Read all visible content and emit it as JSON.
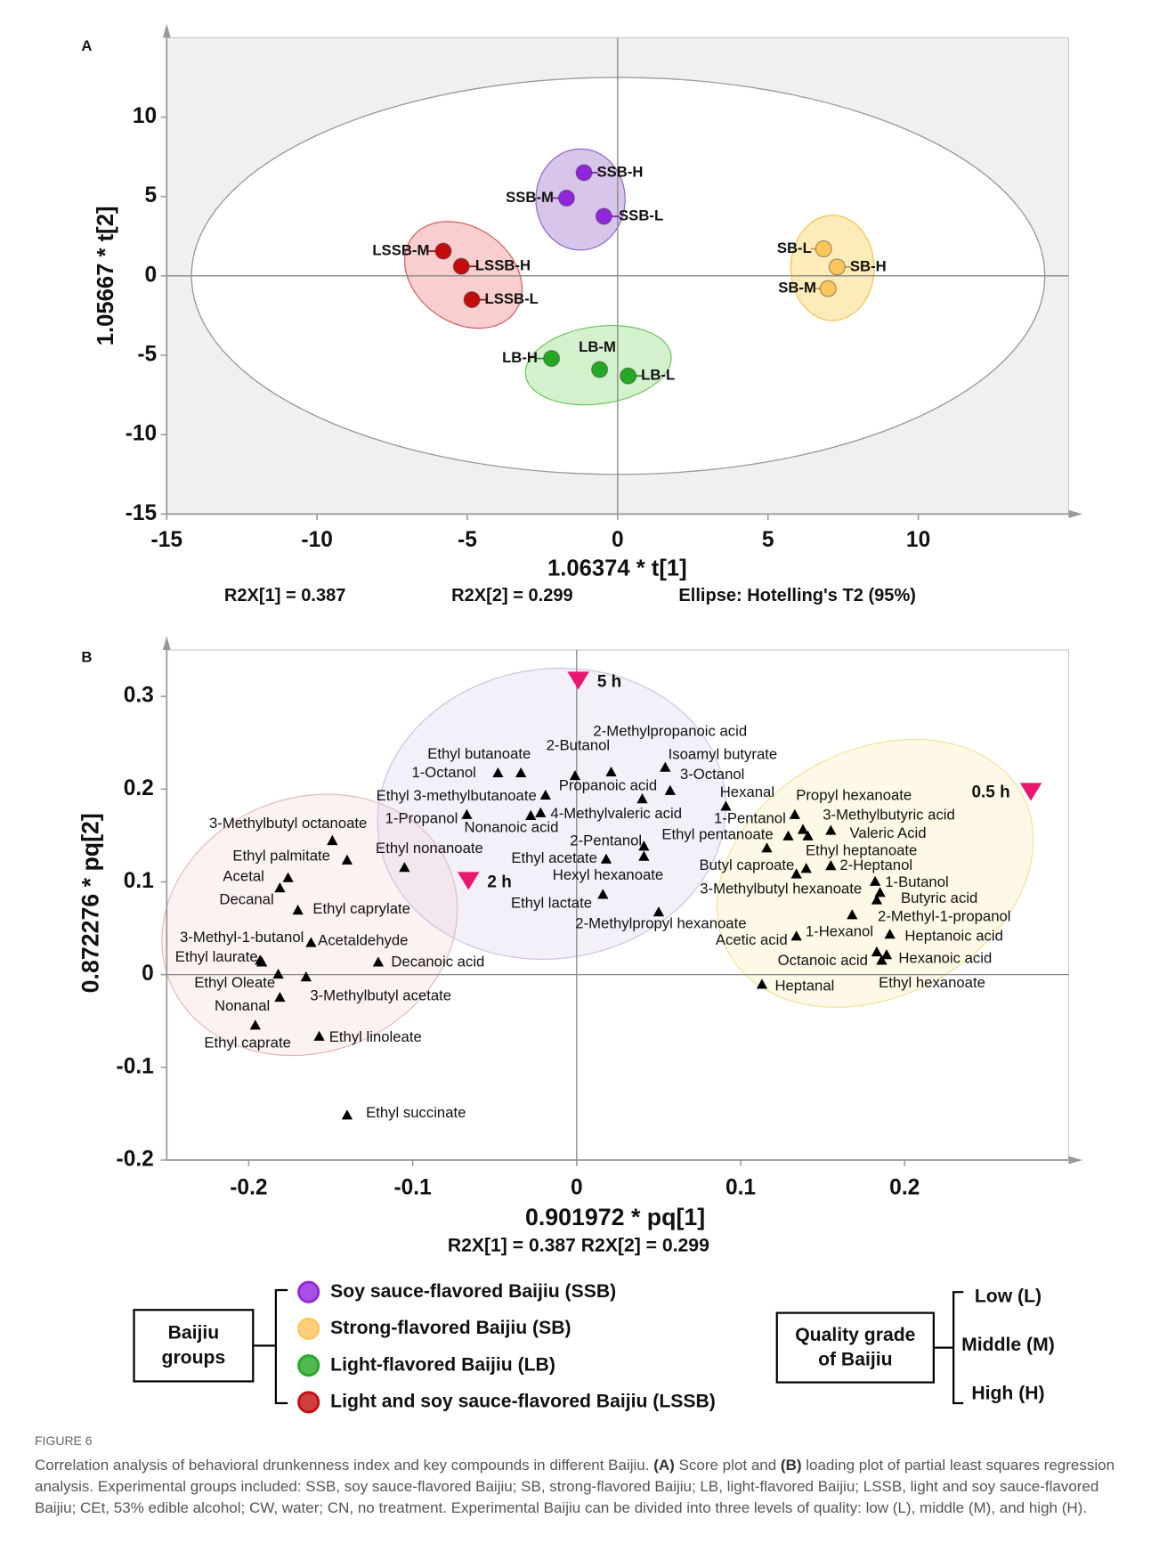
{
  "chart_data": [
    {
      "type": "scatter",
      "panel": "A",
      "xlabel": "1.06374 * t[1]",
      "ylabel": "1.05667 * t[2]",
      "annotations": [
        "R2X[1] = 0.387",
        "R2X[2] = 0.299",
        "Ellipse: Hotelling's T2 (95%)"
      ],
      "xlim": [
        -15,
        15
      ],
      "ylim": [
        -15,
        15
      ],
      "xticks": [
        -15,
        -10,
        -5,
        0,
        5,
        10
      ],
      "yticks": [
        -15,
        -10,
        -5,
        0,
        5,
        10
      ],
      "series": [
        {
          "name": "Soy sauce-flavored Baijiu (SSB)",
          "color": "#9026dc",
          "label_color": "#7a1fa2",
          "labels": [
            "SSB-H",
            "SSB-M",
            "SSB-L"
          ],
          "x": [
            -1.12,
            -1.7,
            -0.46
          ],
          "y": [
            6.5,
            4.9,
            3.75
          ]
        },
        {
          "name": "Strong-flavored Baijiu (SB)",
          "color": "#fdc65a",
          "label_color": "#c49a4e",
          "labels": [
            "SB-L",
            "SB-H",
            "SB-M"
          ],
          "x": [
            6.85,
            7.3,
            7.0
          ],
          "y": [
            1.7,
            0.56,
            -0.8
          ]
        },
        {
          "name": "Light-flavored Baijiu (LB)",
          "color": "#25a825",
          "label_color": "#1e8c1e",
          "labels": [
            "LB-H",
            "LB-M",
            "LB-L"
          ],
          "x": [
            -2.2,
            -0.6,
            0.35
          ],
          "y": [
            -5.2,
            -5.9,
            -6.3
          ]
        },
        {
          "name": "Light and soy sauce-flavored Baijiu (LSSB)",
          "color": "#c40c0c",
          "label_color": "#8b1010",
          "labels": [
            "LSSB-M",
            "LSSB-H",
            "LSSB-L"
          ],
          "x": [
            -5.8,
            -5.2,
            -4.85
          ],
          "y": [
            1.56,
            0.6,
            -1.5
          ]
        }
      ]
    },
    {
      "type": "loading",
      "panel": "B",
      "xlabel": "0.901972 * pq[1]",
      "ylabel": "0.872276 * pq[2]",
      "annotations": [
        "R2X[1] = 0.387 R2X[2] = 0.299"
      ],
      "xlim": [
        -0.25,
        0.3
      ],
      "ylim": [
        -0.2,
        0.35
      ],
      "xticks": [
        -0.2,
        -0.1,
        0,
        0.1,
        0.2
      ],
      "yticks": [
        -0.2,
        -0.1,
        0,
        0.1,
        0.2,
        0.3
      ],
      "variables": {
        "color": "#000000",
        "labels": [
          "1-Octanol",
          "Ethyl butanoate",
          "2-Butanol",
          "2-Methylpropanoic acid",
          "Isoamyl butyrate",
          "3-Octanol",
          "Ethyl 3-methylbutanoate",
          "Propanoic acid",
          "1-Propanol",
          "Nonanoic acid",
          "4-Methylvaleric acid",
          "Hexanal",
          "Ethyl nonanoate",
          "Ethyl acetate",
          "2-Pentanol",
          "Hexyl hexanoate",
          "1-Pentanol",
          "Ethyl pentanoate",
          "Ethyl lactate",
          "2-Methylpropyl hexanoate",
          "Butyl caproate",
          "3-Methylbutyl hexanoate",
          "Propyl hexanoate",
          "3-Methylbutyric acid",
          "Valeric Acid",
          "Ethyl heptanoate",
          "2-Heptanol",
          "1-Butanol",
          "Butyric acid",
          "2-Methyl-1-propanol",
          "1-Hexanol",
          "Acetic acid",
          "Heptanoic acid",
          "Octanoic acid",
          "Hexanoic acid",
          "Ethyl hexanoate",
          "Heptanal",
          "3-Methylbutyl octanoate",
          "Ethyl palmitate",
          "Acetal",
          "Decanal",
          "Ethyl caprylate",
          "3-Methyl-1-butanol",
          "Acetaldehyde",
          "Ethyl laurate",
          "Decanoic acid",
          "Ethyl Oleate",
          "3-Methylbutyl acetate",
          "Nonanal",
          "Ethyl caprate",
          "Ethyl linoleate",
          "Ethyl succinate"
        ],
        "x": [
          -0.048,
          -0.034,
          -0.001,
          0.021,
          0.054,
          0.057,
          -0.019,
          0.04,
          -0.067,
          -0.028,
          -0.022,
          0.091,
          -0.105,
          0.018,
          0.041,
          0.041,
          0.133,
          0.129,
          0.016,
          0.05,
          0.14,
          0.134,
          0.138,
          0.141,
          0.155,
          0.116,
          0.155,
          0.182,
          0.185,
          0.183,
          0.168,
          0.134,
          0.191,
          0.183,
          0.189,
          0.186,
          0.113,
          -0.149,
          -0.14,
          -0.176,
          -0.181,
          -0.17,
          -0.193,
          -0.162,
          -0.192,
          -0.121,
          -0.182,
          -0.165,
          -0.181,
          -0.196,
          -0.157,
          -0.14
        ],
        "y": [
          0.217,
          0.217,
          0.214,
          0.218,
          0.223,
          0.198,
          0.193,
          0.189,
          0.172,
          0.171,
          0.174,
          0.181,
          0.115,
          0.124,
          0.138,
          0.127,
          0.172,
          0.149,
          0.086,
          0.067,
          0.114,
          0.108,
          0.156,
          0.149,
          0.155,
          0.136,
          0.117,
          0.1,
          0.088,
          0.08,
          0.064,
          0.041,
          0.043,
          0.024,
          0.021,
          0.015,
          -0.011,
          0.144,
          0.123,
          0.104,
          0.093,
          0.069,
          0.015,
          0.034,
          0.013,
          0.013,
          0,
          -0.003,
          -0.025,
          -0.055,
          -0.067,
          -0.152
        ]
      },
      "samples": {
        "color": "#e8176f",
        "labels": [
          "5 h",
          "2 h",
          "0.5 h"
        ],
        "x": [
          0.001,
          -0.066,
          0.277
        ],
        "y": [
          0.317,
          0.101,
          0.197
        ]
      }
    }
  ],
  "legend": {
    "groups_title": [
      "Baijiu",
      "groups"
    ],
    "quality_title": [
      "Quality grade",
      "of Baijiu"
    ],
    "quality_levels": [
      "Low (L)",
      "Middle (M)",
      "High (H)"
    ]
  },
  "caption": {
    "label": "FIGURE 6",
    "parts": [
      "Correlation analysis of behavioral drunkenness index and key compounds in different Baijiu. ",
      "(A)",
      " Score plot and ",
      "(B)",
      " loading plot of partial least squares regression analysis. Experimental groups included: SSB, soy sauce-flavored Baijiu; SB, strong-flavored Baijiu; LB, light-flavored Baijiu; LSSB, light and soy sauce-flavored Baijiu; CEt, 53% edible alcohol; CW, water; CN, no treatment. Experimental Baijiu can be divided into three levels of quality: low (L), middle (M), and high (H)."
    ]
  }
}
